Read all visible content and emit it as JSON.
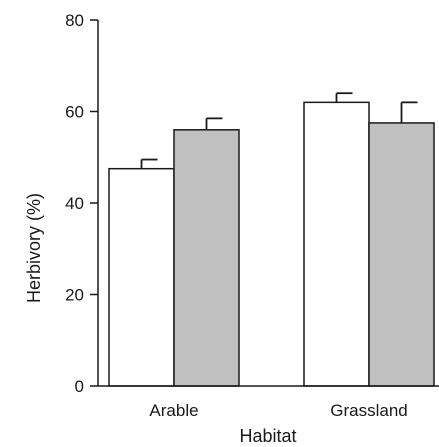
{
  "chart_data": {
    "type": "bar",
    "title": "",
    "xlabel": "Habitat",
    "ylabel": "Herbivory (%)",
    "categories": [
      "Arable",
      "Grassland"
    ],
    "ylim": [
      0,
      80
    ],
    "yticks": [
      "0",
      "20",
      "40",
      "60",
      "80"
    ],
    "grid": false,
    "legend": "none",
    "series": [
      {
        "color": "#ffffff",
        "values": [
          47.5,
          62
        ],
        "errors": [
          2,
          2
        ]
      },
      {
        "color": "#c0c0c0",
        "values": [
          56,
          57.5
        ],
        "errors": [
          2.5,
          4.5
        ]
      }
    ]
  }
}
